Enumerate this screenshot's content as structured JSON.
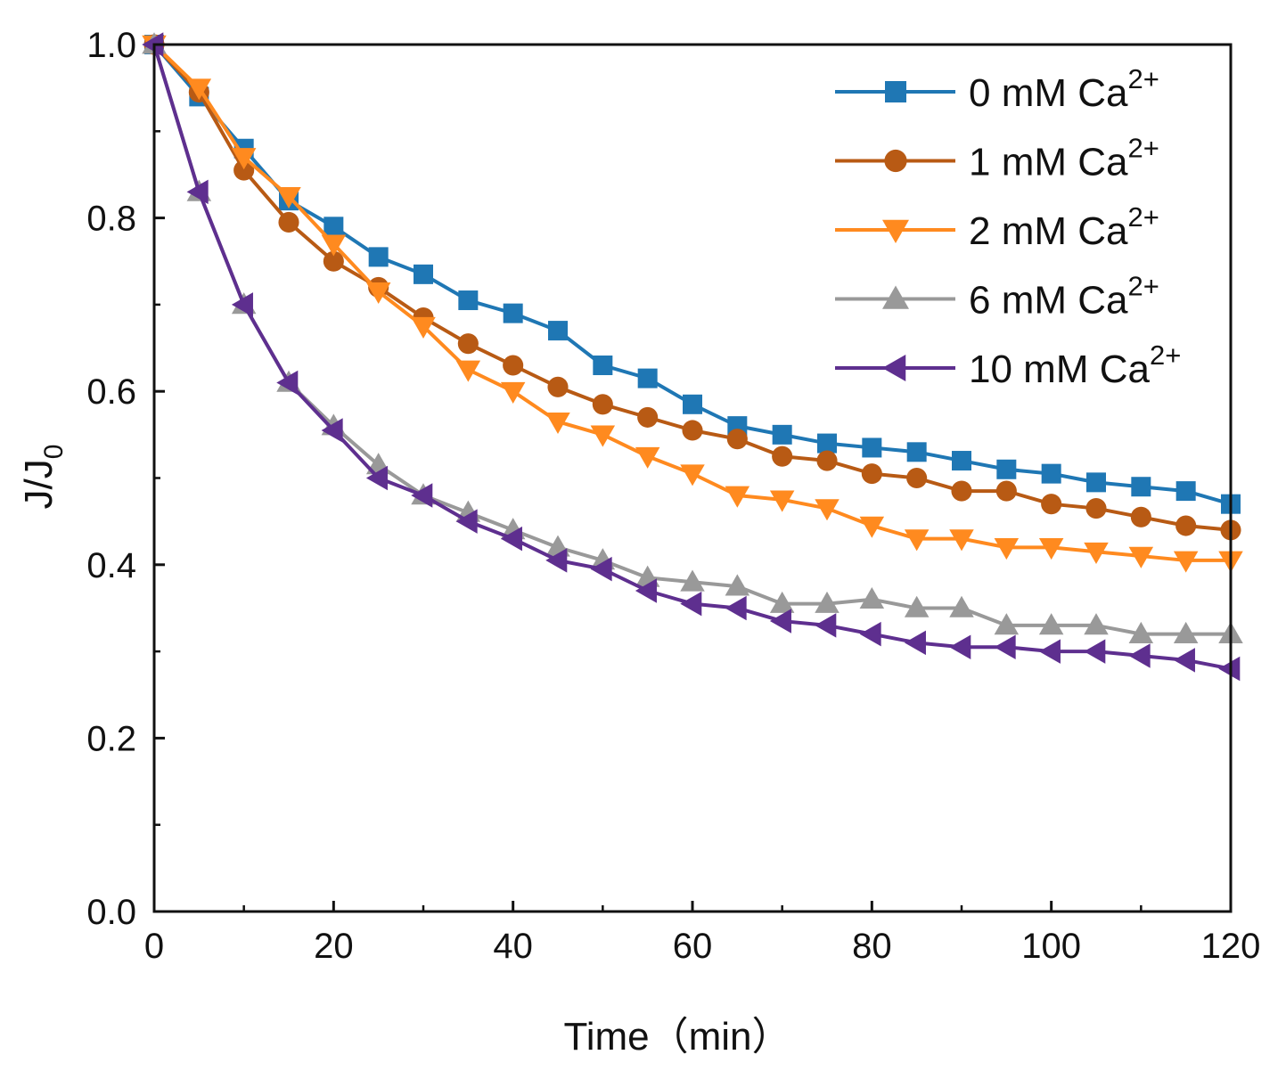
{
  "chart_data": {
    "type": "line",
    "title": "",
    "xlabel": "Time（min）",
    "ylabel": "J/J0",
    "ylabel_main": "J/J",
    "ylabel_sub": "0",
    "xlim": [
      0,
      120
    ],
    "ylim": [
      0.0,
      1.0
    ],
    "xticks": [
      0,
      20,
      40,
      60,
      80,
      100,
      120
    ],
    "xtick_labels": [
      "0",
      "20",
      "40",
      "60",
      "80",
      "100",
      "120"
    ],
    "yticks": [
      0.0,
      0.2,
      0.4,
      0.6,
      0.8,
      1.0
    ],
    "ytick_labels": [
      "0.0",
      "0.2",
      "0.4",
      "0.6",
      "0.8",
      "1.0"
    ],
    "grid": false,
    "legend_position": "top-right",
    "x": [
      0,
      5,
      10,
      15,
      20,
      25,
      30,
      35,
      40,
      45,
      50,
      55,
      60,
      65,
      70,
      75,
      80,
      85,
      90,
      95,
      100,
      105,
      110,
      115,
      120
    ],
    "series": [
      {
        "name": "0 mM Ca2+",
        "label_main": "0 mM Ca",
        "label_sup": "2+",
        "color": "#1f77b4",
        "marker": "square",
        "values": [
          1.0,
          0.94,
          0.88,
          0.82,
          0.79,
          0.755,
          0.735,
          0.705,
          0.69,
          0.67,
          0.63,
          0.615,
          0.585,
          0.56,
          0.55,
          0.54,
          0.535,
          0.53,
          0.52,
          0.51,
          0.505,
          0.495,
          0.49,
          0.485,
          0.47
        ]
      },
      {
        "name": "1 mM Ca2+",
        "label_main": "1 mM Ca",
        "label_sup": "2+",
        "color": "#b85a14",
        "marker": "circle",
        "values": [
          1.0,
          0.945,
          0.855,
          0.795,
          0.75,
          0.72,
          0.685,
          0.655,
          0.63,
          0.605,
          0.585,
          0.57,
          0.555,
          0.545,
          0.525,
          0.52,
          0.505,
          0.5,
          0.485,
          0.485,
          0.47,
          0.465,
          0.455,
          0.445,
          0.44
        ]
      },
      {
        "name": "2 mM Ca2+",
        "label_main": "2 mM Ca",
        "label_sup": "2+",
        "color": "#ff8a1f",
        "marker": "triangle-down",
        "values": [
          1.0,
          0.95,
          0.87,
          0.825,
          0.77,
          0.715,
          0.675,
          0.625,
          0.6,
          0.565,
          0.55,
          0.525,
          0.505,
          0.48,
          0.475,
          0.465,
          0.445,
          0.43,
          0.43,
          0.42,
          0.42,
          0.415,
          0.41,
          0.405,
          0.405
        ]
      },
      {
        "name": "6 mM Ca2+",
        "label_main": "6 mM Ca",
        "label_sup": "2+",
        "color": "#999999",
        "marker": "triangle-up",
        "values": [
          1.0,
          0.83,
          0.7,
          0.61,
          0.56,
          0.515,
          0.48,
          0.46,
          0.44,
          0.42,
          0.405,
          0.385,
          0.38,
          0.375,
          0.355,
          0.355,
          0.36,
          0.35,
          0.35,
          0.33,
          0.33,
          0.33,
          0.32,
          0.32,
          0.32
        ]
      },
      {
        "name": "10 mM Ca2+",
        "label_main": "10 mM Ca",
        "label_sup": "2+",
        "color": "#5e2f8f",
        "marker": "triangle-left",
        "values": [
          1.0,
          0.83,
          0.7,
          0.61,
          0.555,
          0.5,
          0.48,
          0.45,
          0.43,
          0.405,
          0.395,
          0.37,
          0.355,
          0.35,
          0.335,
          0.33,
          0.32,
          0.31,
          0.305,
          0.305,
          0.3,
          0.3,
          0.295,
          0.29,
          0.28
        ]
      }
    ]
  }
}
